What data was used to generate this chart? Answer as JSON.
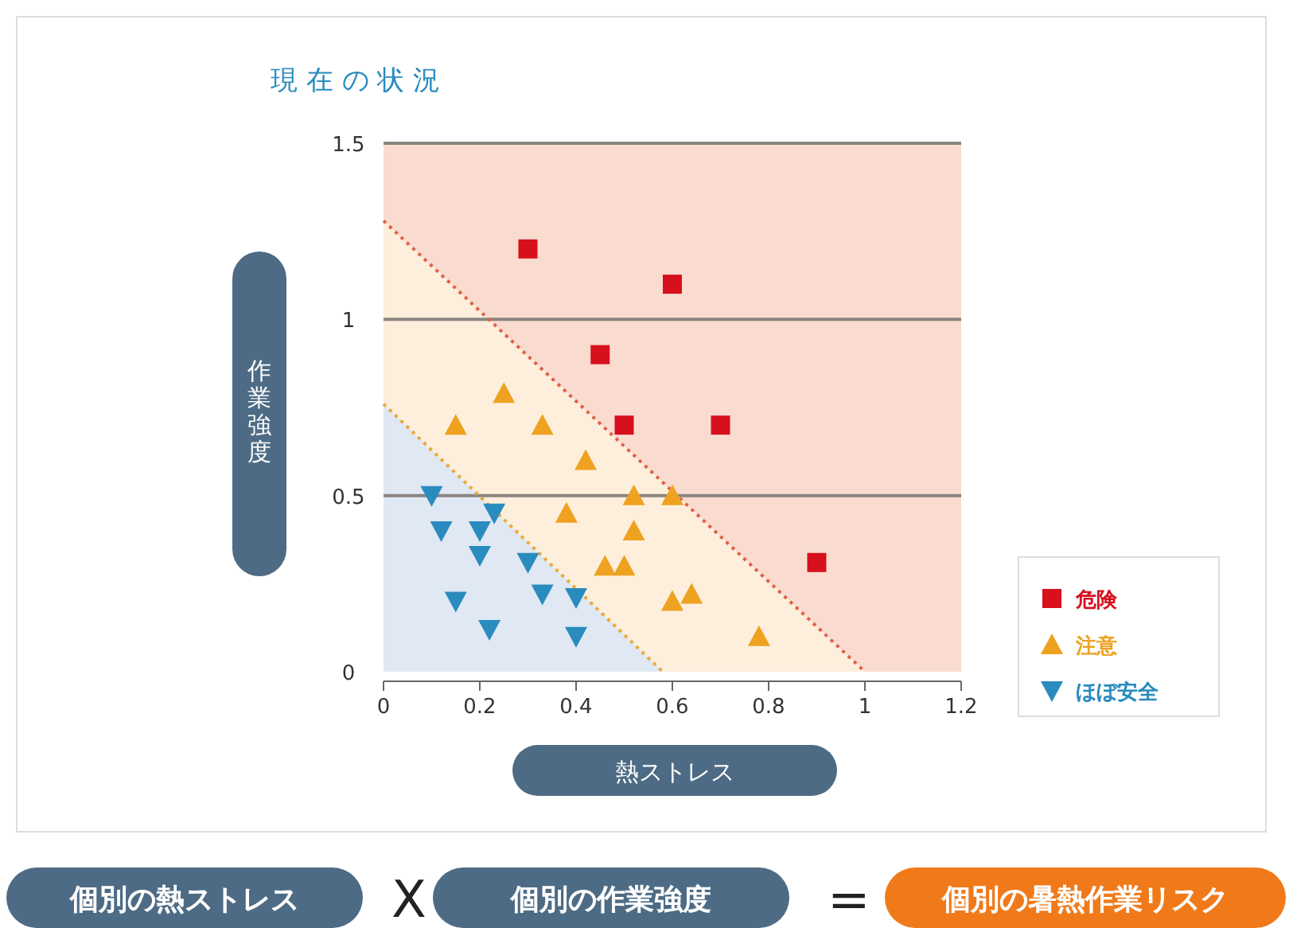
{
  "chart_data": {
    "type": "scatter",
    "title": "現 在 の 状 況",
    "xlabel": "熱ストレス",
    "ylabel": "作業強度",
    "xlim": [
      0,
      1.2
    ],
    "xticks": [
      0,
      0.2,
      0.4,
      0.6,
      0.8,
      1,
      1.2
    ],
    "ylim": [
      0,
      1.5
    ],
    "yticks": [
      0,
      0.5,
      1,
      1.5
    ],
    "grid": "y",
    "legend": "right",
    "annotations": [
      "個別の熱ストレス",
      "X",
      "個別の作業強度",
      "=",
      "個別の暑熱作業リスク"
    ],
    "series": [
      {
        "type": "line",
        "color": "#e0604a",
        "line_style": "dotted",
        "x": [
          0,
          1
        ],
        "values": [
          1.28,
          0
        ]
      },
      {
        "type": "line",
        "color": "#e9a93a",
        "line_style": "dotted",
        "x": [
          0,
          0.58
        ],
        "values": [
          0.76,
          0
        ]
      },
      {
        "name": "危険",
        "color": "#d7101e",
        "marker": "square",
        "x": [
          0.3,
          0.6,
          0.45,
          0.5,
          0.7,
          0.9
        ],
        "values": [
          1.2,
          1.1,
          0.9,
          0.7,
          0.7,
          0.31
        ]
      },
      {
        "name": "注意",
        "color": "#eea21f",
        "marker": "triangle",
        "x": [
          0.15,
          0.25,
          0.33,
          0.42,
          0.38,
          0.52,
          0.6,
          0.52,
          0.46,
          0.5,
          0.6,
          0.64,
          0.78
        ],
        "values": [
          0.7,
          0.79,
          0.7,
          0.6,
          0.45,
          0.5,
          0.5,
          0.4,
          0.3,
          0.3,
          0.2,
          0.22,
          0.1
        ]
      },
      {
        "name": "ほぼ安全",
        "color": "#2a8bbf",
        "marker": "triangle_down",
        "x": [
          0.1,
          0.12,
          0.2,
          0.23,
          0.2,
          0.3,
          0.15,
          0.22,
          0.33,
          0.4,
          0.4
        ],
        "values": [
          0.5,
          0.4,
          0.4,
          0.45,
          0.33,
          0.31,
          0.2,
          0.12,
          0.22,
          0.21,
          0.1
        ]
      }
    ]
  }
}
